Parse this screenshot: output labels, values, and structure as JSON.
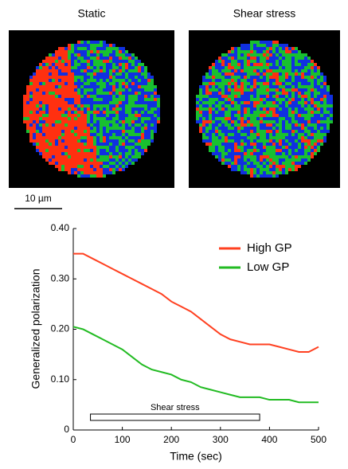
{
  "panels": [
    {
      "title": "Static"
    },
    {
      "title": "Shear stress"
    }
  ],
  "scale_bar": "10 µm",
  "chart_data": {
    "type": "line",
    "y_label": "Generalized polarization",
    "x_label": "Time  (sec)",
    "x": [
      0,
      20,
      40,
      60,
      80,
      100,
      120,
      140,
      160,
      180,
      200,
      220,
      240,
      260,
      280,
      300,
      320,
      340,
      360,
      380,
      400,
      420,
      440,
      460,
      480,
      500
    ],
    "series": [
      {
        "name": "High GP",
        "color": "#ff4020",
        "values": [
          0.35,
          0.35,
          0.34,
          0.33,
          0.32,
          0.31,
          0.3,
          0.29,
          0.28,
          0.27,
          0.255,
          0.245,
          0.235,
          0.22,
          0.205,
          0.19,
          0.18,
          0.175,
          0.17,
          0.17,
          0.17,
          0.165,
          0.16,
          0.155,
          0.155,
          0.165
        ]
      },
      {
        "name": "Low GP",
        "color": "#22bb22",
        "values": [
          0.205,
          0.2,
          0.19,
          0.18,
          0.17,
          0.16,
          0.145,
          0.13,
          0.12,
          0.115,
          0.11,
          0.1,
          0.095,
          0.085,
          0.08,
          0.075,
          0.07,
          0.065,
          0.065,
          0.065,
          0.06,
          0.06,
          0.06,
          0.055,
          0.055,
          0.055
        ]
      }
    ],
    "xlim": [
      0,
      500
    ],
    "xticks": [
      0,
      100,
      200,
      300,
      400,
      500
    ],
    "ylim": [
      0,
      0.4
    ],
    "yticks": [
      0,
      {
        "value": 0.1,
        "label": "0.10"
      },
      {
        "value": 0.2,
        "label": "0.20"
      },
      {
        "value": 0.3,
        "label": "0.30"
      },
      {
        "value": 0.4,
        "label": "0.40"
      }
    ],
    "annotation": {
      "text": "Shear stress",
      "start": 35,
      "end": 380
    }
  }
}
